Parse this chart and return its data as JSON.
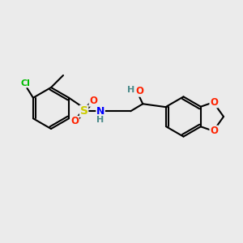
{
  "bg_color": "#ebebeb",
  "bond_color": "#000000",
  "bond_width": 1.5,
  "atom_colors": {
    "Cl": "#00bb00",
    "S": "#cccc00",
    "O": "#ff2200",
    "N": "#0000ff",
    "H": "#4a8a8a",
    "C": "#000000"
  },
  "figsize": [
    3.0,
    3.0
  ],
  "dpi": 100,
  "xlim": [
    0,
    10
  ],
  "ylim": [
    0,
    10
  ]
}
